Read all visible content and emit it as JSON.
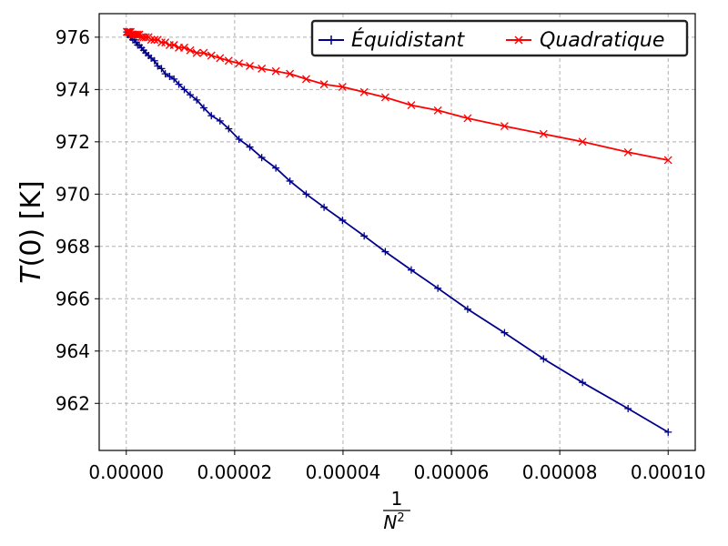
{
  "chart_data": {
    "type": "line",
    "title": "",
    "xlabel": {
      "numerator": "1",
      "denominator_base": "N",
      "denominator_exp": "2"
    },
    "ylabel": {
      "italic": "T",
      "rest": "(0) [K]"
    },
    "xlim": [
      -5e-06,
      0.000105
    ],
    "ylim": [
      960.2,
      976.9
    ],
    "xticks": [
      {
        "value": 0.0,
        "label": "0.00000"
      },
      {
        "value": 2e-05,
        "label": "0.00002"
      },
      {
        "value": 4e-05,
        "label": "0.00004"
      },
      {
        "value": 6e-05,
        "label": "0.00006"
      },
      {
        "value": 8e-05,
        "label": "0.00008"
      },
      {
        "value": 0.0001,
        "label": "0.00010"
      }
    ],
    "yticks": [
      {
        "value": 962,
        "label": "962"
      },
      {
        "value": 964,
        "label": "964"
      },
      {
        "value": 966,
        "label": "966"
      },
      {
        "value": 968,
        "label": "968"
      },
      {
        "value": 970,
        "label": "970"
      },
      {
        "value": 972,
        "label": "972"
      },
      {
        "value": 974,
        "label": "974"
      },
      {
        "value": 976,
        "label": "976"
      }
    ],
    "grid": true,
    "legend_position": "top-right",
    "series": [
      {
        "name": "Équidistant",
        "color": "#00008b",
        "marker": "plus",
        "x": [
          0.0001,
          9.26e-05,
          8.42e-05,
          7.7e-05,
          6.98e-05,
          6.3e-05,
          5.75e-05,
          5.26e-05,
          4.78e-05,
          4.39e-05,
          3.99e-05,
          3.65e-05,
          3.32e-05,
          3.02e-05,
          2.76e-05,
          2.5e-05,
          2.28e-05,
          2.08e-05,
          1.89e-05,
          1.73e-05,
          1.57e-05,
          1.43e-05,
          1.3e-05,
          1.18e-05,
          1.07e-05,
          9.7e-06,
          8.8e-06,
          8e-06,
          7.2e-06,
          6.5e-06,
          5.8e-06,
          5.2e-06,
          4.6e-06,
          4.1e-06,
          3.6e-06,
          3.2e-06,
          2.8e-06,
          2.4e-06,
          2.1e-06,
          1.8e-06,
          1.5e-06,
          1.2e-06,
          1e-06,
          8e-07,
          6e-07,
          4e-07,
          2e-07,
          1e-07
        ],
        "y": [
          960.9,
          961.8,
          962.8,
          963.7,
          964.7,
          965.6,
          966.4,
          967.1,
          967.8,
          968.4,
          969.0,
          969.5,
          970.0,
          970.5,
          971.0,
          971.4,
          971.8,
          972.1,
          972.5,
          972.8,
          973.0,
          973.3,
          973.6,
          973.8,
          974.0,
          974.2,
          974.4,
          974.5,
          974.6,
          974.8,
          974.9,
          975.1,
          975.2,
          975.3,
          975.4,
          975.5,
          975.6,
          975.7,
          975.7,
          975.8,
          975.9,
          975.9,
          976.0,
          976.0,
          976.1,
          976.1,
          976.1,
          976.2
        ]
      },
      {
        "name": "Quadratique",
        "color": "#ff0000",
        "marker": "x",
        "x": [
          0.0001,
          9.26e-05,
          8.42e-05,
          7.7e-05,
          6.98e-05,
          6.3e-05,
          5.75e-05,
          5.26e-05,
          4.78e-05,
          4.39e-05,
          3.99e-05,
          3.65e-05,
          3.32e-05,
          3.02e-05,
          2.76e-05,
          2.5e-05,
          2.28e-05,
          2.08e-05,
          1.89e-05,
          1.73e-05,
          1.57e-05,
          1.43e-05,
          1.3e-05,
          1.18e-05,
          1.07e-05,
          9.7e-06,
          8.8e-06,
          8e-06,
          7.2e-06,
          6.5e-06,
          5.8e-06,
          5.2e-06,
          4.6e-06,
          4.1e-06,
          3.6e-06,
          3.2e-06,
          2.8e-06,
          2.4e-06,
          2.1e-06,
          1.8e-06,
          1.5e-06,
          1.2e-06,
          1e-06,
          8e-07,
          6e-07,
          4e-07,
          2e-07,
          1e-07
        ],
        "y": [
          971.3,
          971.6,
          972.0,
          972.3,
          972.6,
          972.9,
          973.2,
          973.4,
          973.7,
          973.9,
          974.1,
          974.2,
          974.4,
          974.6,
          974.7,
          974.8,
          974.9,
          975.0,
          975.1,
          975.2,
          975.3,
          975.4,
          975.4,
          975.5,
          975.6,
          975.6,
          975.7,
          975.7,
          975.8,
          975.8,
          975.9,
          975.9,
          975.9,
          976.0,
          976.0,
          976.0,
          976.0,
          976.1,
          976.1,
          976.1,
          976.1,
          976.1,
          976.1,
          976.2,
          976.2,
          976.2,
          976.2,
          976.2
        ]
      }
    ]
  }
}
